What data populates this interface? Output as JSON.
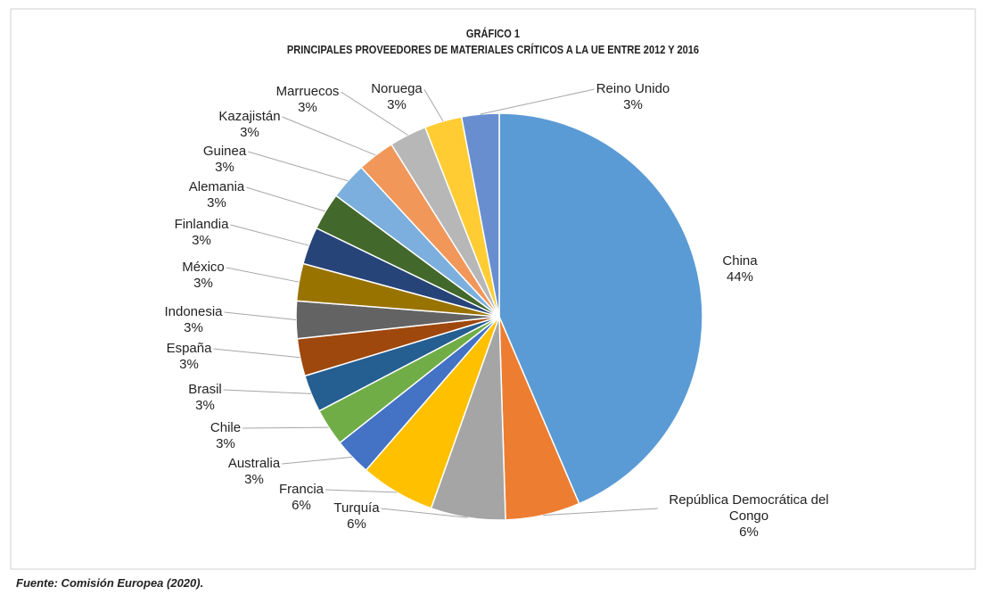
{
  "chart_data": {
    "type": "pie",
    "title": "GRÁFICO 1",
    "subtitle": "PRINCIPALES PROVEEDORES DE MATERIALES CRÍTICOS A LA UE ENTRE 2012 Y 2016",
    "categories": [
      "China",
      "República Democrática del Congo",
      "Turquía",
      "Francia",
      "Australia",
      "Chile",
      "Brasil",
      "España",
      "Indonesia",
      "México",
      "Finlandia",
      "Alemania",
      "Guinea",
      "Kazajistán",
      "Marruecos",
      "Noruega",
      "Reino Unido"
    ],
    "values": [
      44,
      6,
      6,
      6,
      3,
      3,
      3,
      3,
      3,
      3,
      3,
      3,
      3,
      3,
      3,
      3,
      3
    ],
    "value_labels": [
      "44%",
      "6%",
      "6%",
      "6%",
      "3%",
      "3%",
      "3%",
      "3%",
      "3%",
      "3%",
      "3%",
      "3%",
      "3%",
      "3%",
      "3%",
      "3%",
      "3%"
    ],
    "colors": [
      "#5b9bd5",
      "#ed7d31",
      "#a5a5a5",
      "#ffc000",
      "#4472c4",
      "#70ad47",
      "#255e91",
      "#9e480e",
      "#636363",
      "#997300",
      "#264478",
      "#43682b",
      "#7cafdd",
      "#f1975a",
      "#b7b7b7",
      "#ffcd33",
      "#698ed0"
    ],
    "source": "Fuente: Comisión Europea (2020)."
  }
}
